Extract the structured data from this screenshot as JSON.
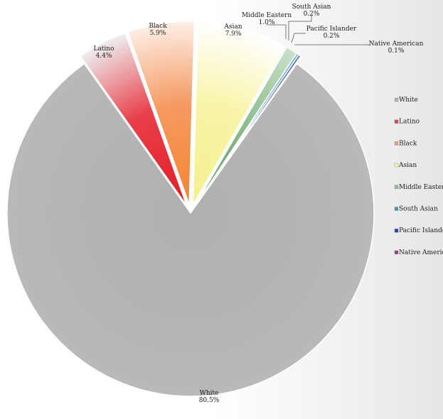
{
  "chart_data": {
    "type": "pie",
    "title": "",
    "exploded": true,
    "legend_position": "right",
    "slices": [
      {
        "name": "White",
        "value": 80.5,
        "label": "80.5%",
        "color": "#b4b4b4",
        "light": "#b9b9b9",
        "dark": "#b0b0b0"
      },
      {
        "name": "Latino",
        "value": 4.4,
        "label": "4.4%",
        "color": "#e8404a",
        "light": "#eeeeee",
        "dark": "#e41c24"
      },
      {
        "name": "Black",
        "value": 5.9,
        "label": "5.9%",
        "color": "#f59a62",
        "light": "#fdeee6",
        "dark": "#f58430"
      },
      {
        "name": "Asian",
        "value": 7.9,
        "label": "7.9%",
        "color": "#f8f4a8",
        "light": "#ffffff",
        "dark": "#f5f08e"
      },
      {
        "name": "Middle Eastern",
        "value": 1.0,
        "label": "1.0%",
        "color": "#8fbf8f",
        "light": "#c8e0c8",
        "dark": "#5c9a5c"
      },
      {
        "name": "South Asian",
        "value": 0.2,
        "label": "0.2%",
        "color": "#3a9ea6",
        "light": "#5fb6bd",
        "dark": "#1f7f87"
      },
      {
        "name": "Pacific Islander",
        "value": 0.2,
        "label": "0.2%",
        "color": "#2a3ec2",
        "light": "#4a5ed8",
        "dark": "#1c2a9a"
      },
      {
        "name": "Native American",
        "value": 0.1,
        "label": "0.1%",
        "color": "#9a3b8e",
        "light": "#b45aa8",
        "dark": "#7a2a70"
      }
    ]
  }
}
